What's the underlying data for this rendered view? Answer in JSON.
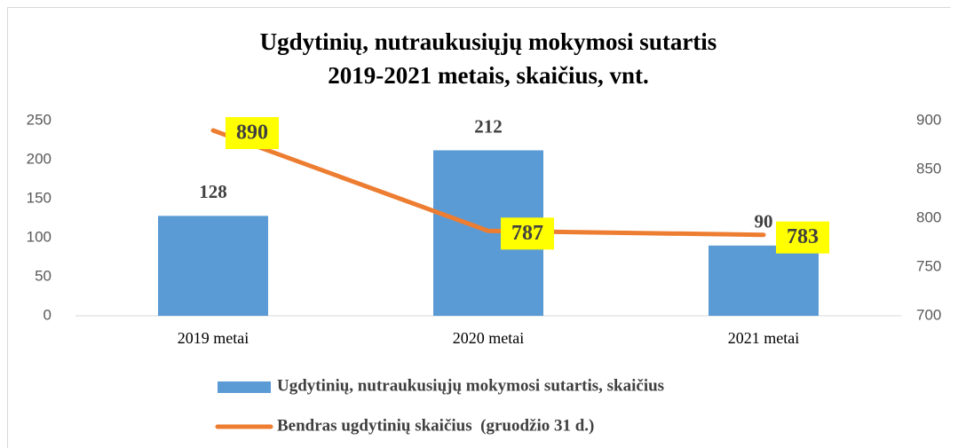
{
  "chart_data": {
    "type": "bar-line",
    "title": [
      "Ugdytinių, nutraukusiųjų mokymosi sutartis",
      "2019-2021 metais, skaičius, vnt."
    ],
    "categories": [
      "2019 metai",
      "2020 metai",
      "2021 metai"
    ],
    "series": [
      {
        "name": "Ugdytinių, nutraukusiųjų mokymosi sutartis, skaičius",
        "type": "bar",
        "color": "#5b9bd5",
        "values": [
          128,
          212,
          90
        ]
      },
      {
        "name": "Bendras ugdytinių skaičius  (gruodžio 31 d.)",
        "type": "line",
        "axis": "y2",
        "color": "#ed7d31",
        "values": [
          890,
          787,
          783
        ]
      }
    ],
    "ylim": [
      0,
      250
    ],
    "yticks": [
      0,
      50,
      100,
      150,
      200,
      250
    ],
    "y2lim": [
      700,
      900
    ],
    "y2ticks": [
      700,
      750,
      800,
      850,
      900
    ],
    "grid": false,
    "legend": "bottom"
  }
}
